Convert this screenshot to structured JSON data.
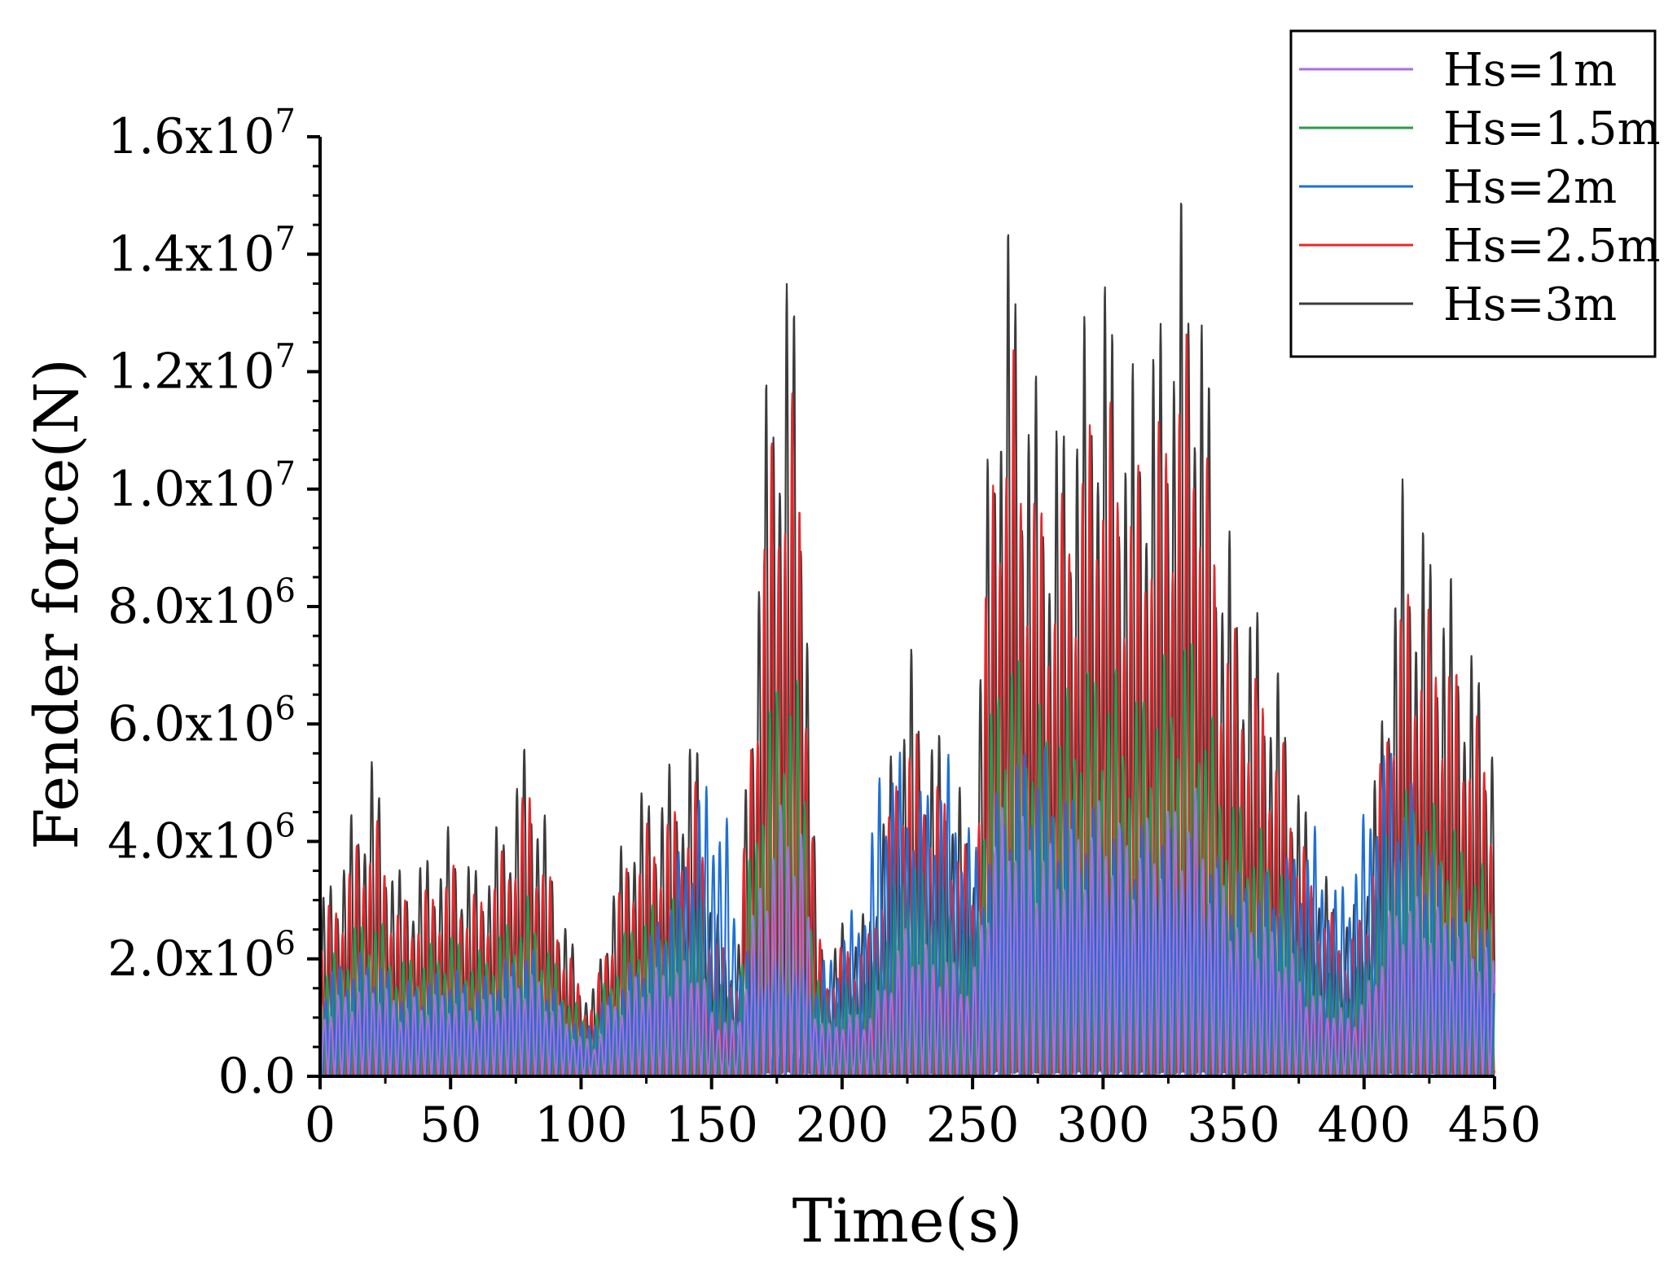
{
  "chart_data": {
    "type": "line",
    "xlabel": "Time(s)",
    "ylabel": "Fender force(N)",
    "xlim": [
      0,
      450
    ],
    "ylim": [
      0,
      16000000
    ],
    "x_ticks": [
      {
        "value": 0,
        "label": "0"
      },
      {
        "value": 50,
        "label": "50"
      },
      {
        "value": 100,
        "label": "100"
      },
      {
        "value": 150,
        "label": "150"
      },
      {
        "value": 200,
        "label": "200"
      },
      {
        "value": 250,
        "label": "250"
      },
      {
        "value": 300,
        "label": "300"
      },
      {
        "value": 350,
        "label": "350"
      },
      {
        "value": 400,
        "label": "400"
      },
      {
        "value": 450,
        "label": "450"
      }
    ],
    "y_ticks": [
      {
        "value": 0,
        "mantissa": "0.0",
        "exponent": ""
      },
      {
        "value": 2000000,
        "mantissa": "2.0x10",
        "exponent": "6"
      },
      {
        "value": 4000000,
        "mantissa": "4.0x10",
        "exponent": "6"
      },
      {
        "value": 6000000,
        "mantissa": "6.0x10",
        "exponent": "6"
      },
      {
        "value": 8000000,
        "mantissa": "8.0x10",
        "exponent": "6"
      },
      {
        "value": 10000000,
        "mantissa": "1.0x10",
        "exponent": "7"
      },
      {
        "value": 12000000,
        "mantissa": "1.2x10",
        "exponent": "7"
      },
      {
        "value": 14000000,
        "mantissa": "1.4x10",
        "exponent": "7"
      },
      {
        "value": 16000000,
        "mantissa": "1.6x10",
        "exponent": "7"
      }
    ],
    "grid": false,
    "legend_position": "top-right",
    "oscillation_period_s": 5.3,
    "series": [
      {
        "name": "Hs=3m",
        "color": "#3c3c3c",
        "envelope": {
          "t": [
            0,
            10,
            20,
            30,
            40,
            50,
            60,
            70,
            80,
            90,
            100,
            105,
            110,
            120,
            130,
            140,
            145,
            150,
            160,
            165,
            170,
            175,
            180,
            185,
            190,
            195,
            200,
            210,
            220,
            225,
            230,
            240,
            245,
            250,
            255,
            260,
            265,
            270,
            280,
            290,
            300,
            310,
            320,
            330,
            335,
            340,
            345,
            350,
            360,
            370,
            380,
            390,
            395,
            400,
            405,
            410,
            415,
            420,
            430,
            440,
            450
          ],
          "peak": [
            3000000,
            4200000,
            5600000,
            3500000,
            3800000,
            4300000,
            3600000,
            4500000,
            6000000,
            3500000,
            1700000,
            1500000,
            3000000,
            4800000,
            5200000,
            5600000,
            6000000,
            3000000,
            2000000,
            7200000,
            11400000,
            13700000,
            14400000,
            12000000,
            3000000,
            2000000,
            2700000,
            2800000,
            6000000,
            7700000,
            6500000,
            5700000,
            5000000,
            4000000,
            10000000,
            14000000,
            15000000,
            12800000,
            11000000,
            12500000,
            14200000,
            12000000,
            13000000,
            15000000,
            15200000,
            12500000,
            10000000,
            9000000,
            8000000,
            6500000,
            4000000,
            3000000,
            2800000,
            3500000,
            5500000,
            8500000,
            10300000,
            9800000,
            9000000,
            7600000,
            6400000
          ]
        }
      },
      {
        "name": "Hs=2.5m",
        "color": "#e8272b",
        "envelope": {
          "t": [
            0,
            10,
            20,
            30,
            40,
            50,
            60,
            70,
            80,
            90,
            100,
            105,
            110,
            120,
            130,
            140,
            145,
            150,
            160,
            165,
            170,
            175,
            180,
            185,
            190,
            195,
            200,
            210,
            220,
            225,
            230,
            240,
            245,
            250,
            255,
            260,
            265,
            270,
            280,
            290,
            300,
            310,
            320,
            330,
            335,
            340,
            345,
            350,
            360,
            370,
            380,
            390,
            395,
            400,
            405,
            410,
            415,
            420,
            430,
            440,
            450
          ],
          "peak": [
            2600000,
            3600000,
            4700000,
            3000000,
            3200000,
            3700000,
            3100000,
            3900000,
            5200000,
            3000000,
            1500000,
            1300000,
            2600000,
            4100000,
            4500000,
            4800000,
            5100000,
            2600000,
            1800000,
            6200000,
            9800000,
            11800000,
            12100000,
            10300000,
            2600000,
            1800000,
            2300000,
            2400000,
            5100000,
            6500000,
            5600000,
            4900000,
            4300000,
            3500000,
            8600000,
            12000000,
            12700000,
            11000000,
            9400000,
            10700000,
            12100000,
            10300000,
            11100000,
            12800000,
            12900000,
            10700000,
            8600000,
            7700000,
            6900000,
            5600000,
            3400000,
            2600000,
            2400000,
            3000000,
            4700000,
            7300000,
            8600000,
            8300000,
            7700000,
            6500000,
            5500000
          ]
        }
      },
      {
        "name": "Hs=1.5m",
        "color": "#2e9a4b",
        "envelope": {
          "t": [
            0,
            10,
            20,
            30,
            40,
            50,
            60,
            70,
            80,
            90,
            100,
            105,
            110,
            120,
            130,
            140,
            145,
            150,
            160,
            165,
            170,
            175,
            180,
            185,
            190,
            195,
            200,
            210,
            220,
            225,
            230,
            240,
            245,
            250,
            255,
            260,
            265,
            270,
            280,
            290,
            300,
            310,
            320,
            330,
            335,
            340,
            345,
            350,
            360,
            370,
            380,
            390,
            395,
            400,
            405,
            410,
            415,
            420,
            430,
            440,
            450
          ],
          "peak": [
            1800000,
            2400000,
            3000000,
            2000000,
            2200000,
            2500000,
            2100000,
            2600000,
            3100000,
            2000000,
            1100000,
            1000000,
            1800000,
            2800000,
            3000000,
            3200000,
            3300000,
            1800000,
            1300000,
            4000000,
            6000000,
            7000000,
            7400000,
            6300000,
            1800000,
            1300000,
            1600000,
            1700000,
            3300000,
            4200000,
            3600000,
            3200000,
            2900000,
            2400000,
            5600000,
            7200000,
            7700000,
            6800000,
            6200000,
            6900000,
            7400000,
            6500000,
            7000000,
            7600000,
            7800000,
            6600000,
            5400000,
            4900000,
            4300000,
            3600000,
            2300000,
            1800000,
            1700000,
            2100000,
            3300000,
            4600000,
            5000000,
            4900000,
            4600000,
            4000000,
            3300000
          ]
        }
      },
      {
        "name": "Hs=2m",
        "color": "#1f6fd6",
        "envelope": {
          "t": [
            0,
            10,
            20,
            30,
            40,
            50,
            60,
            70,
            80,
            90,
            100,
            110,
            120,
            130,
            140,
            145,
            150,
            155,
            160,
            170,
            180,
            190,
            200,
            210,
            215,
            220,
            230,
            240,
            250,
            255,
            260,
            270,
            275,
            280,
            290,
            300,
            310,
            320,
            330,
            340,
            350,
            360,
            370,
            380,
            390,
            400,
            405,
            410,
            415,
            420,
            430,
            440,
            450
          ],
          "peak": [
            1800000,
            2000000,
            2200000,
            1600000,
            1700000,
            1900000,
            1600000,
            2000000,
            2300000,
            1500000,
            900000,
            1400000,
            2000000,
            2800000,
            4200000,
            5000000,
            5200000,
            4800000,
            2500000,
            2000000,
            2000000,
            1800000,
            2500000,
            3500000,
            5900000,
            5700000,
            5000000,
            5600000,
            4200000,
            4000000,
            5000000,
            5800000,
            6000000,
            5300000,
            4800000,
            4500000,
            4200000,
            4400000,
            4200000,
            3900000,
            3600000,
            3400000,
            3800000,
            4400000,
            3200000,
            4500000,
            5700000,
            5800000,
            5400000,
            4800000,
            3600000,
            3000000,
            2400000
          ]
        }
      },
      {
        "name": "Hs=1m",
        "color": "#a86ee0",
        "envelope": {
          "t": [
            0,
            10,
            20,
            30,
            40,
            50,
            60,
            70,
            80,
            90,
            100,
            105,
            110,
            120,
            130,
            140,
            145,
            150,
            160,
            165,
            170,
            175,
            180,
            185,
            190,
            195,
            200,
            210,
            220,
            225,
            230,
            240,
            245,
            250,
            255,
            260,
            265,
            270,
            280,
            290,
            300,
            310,
            320,
            330,
            335,
            340,
            345,
            350,
            360,
            370,
            380,
            390,
            395,
            400,
            405,
            410,
            415,
            420,
            430,
            440,
            450
          ],
          "peak": [
            1200000,
            1500000,
            1800000,
            1300000,
            1400000,
            1500000,
            1300000,
            1600000,
            1900000,
            1300000,
            700000,
            600000,
            1200000,
            1700000,
            1900000,
            2000000,
            2100000,
            1200000,
            900000,
            2600000,
            3800000,
            4500000,
            4900000,
            4200000,
            1200000,
            900000,
            1100000,
            1100000,
            2100000,
            2700000,
            2300000,
            2100000,
            1900000,
            1600000,
            3500000,
            4600000,
            4900000,
            4400000,
            4000000,
            4400000,
            4800000,
            4200000,
            4500000,
            4900000,
            5000000,
            4200000,
            3500000,
            3100000,
            2800000,
            2300000,
            1500000,
            1200000,
            1100000,
            1400000,
            2100000,
            2900000,
            3200000,
            3100000,
            2900000,
            2600000,
            2100000
          ]
        }
      }
    ]
  },
  "legend": {
    "items": [
      {
        "label": "Hs=1m",
        "color": "#a86ee0"
      },
      {
        "label": "Hs=1.5m",
        "color": "#2e9a4b"
      },
      {
        "label": "Hs=2m",
        "color": "#1f6fd6"
      },
      {
        "label": "Hs=2.5m",
        "color": "#e8272b"
      },
      {
        "label": "Hs=3m",
        "color": "#3c3c3c"
      }
    ]
  }
}
